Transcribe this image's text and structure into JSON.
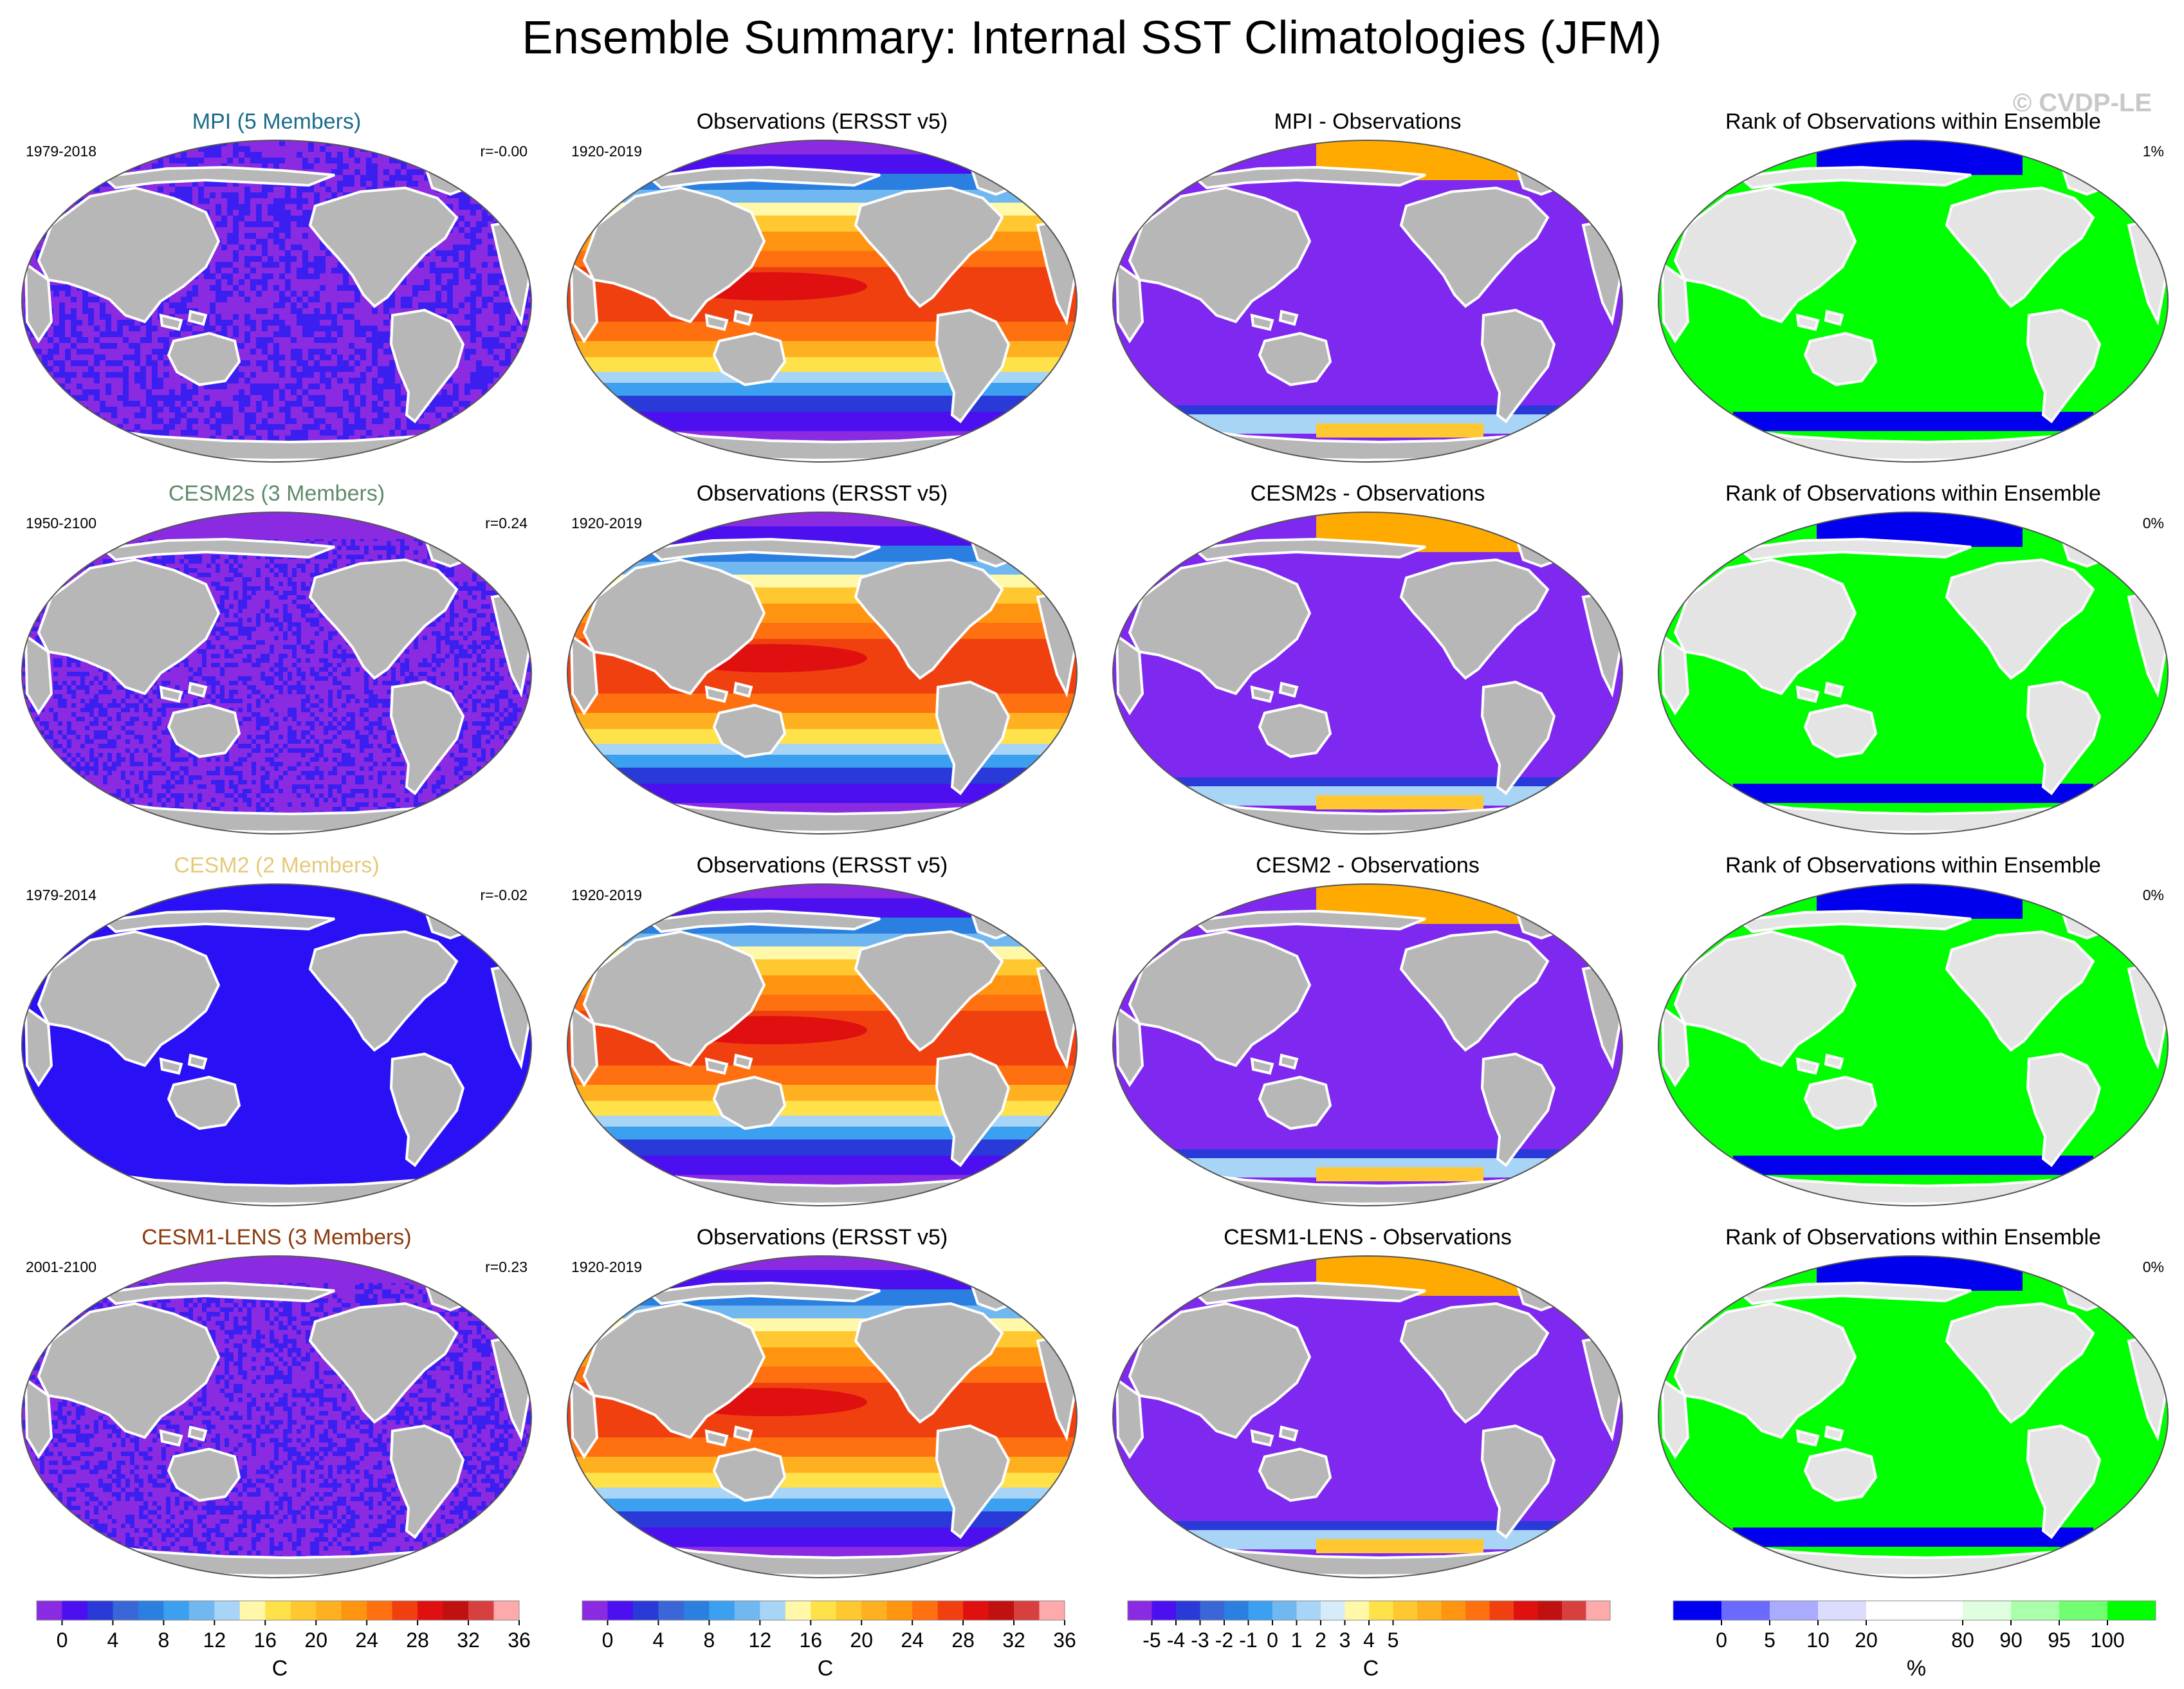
{
  "title": "Ensemble Summary: Internal SST Climatologies (JFM)",
  "watermark": "© CVDP-LE",
  "colors": {
    "land": "#b7b7b7",
    "land_rank": "#e4e4e4",
    "ocean_model_uniform": "#2a10f5",
    "ocean_noise_a": "#8a2be2",
    "ocean_noise_b": "#3a1ff0",
    "rank_green": "#00ff00",
    "rank_blue": "#0000ee",
    "diff_purple": "#7f28f0",
    "diff_orange": "#ffaa00"
  },
  "rows": [
    {
      "model": {
        "title": "MPI (5 Members)",
        "title_color": "#1a6b8a",
        "period": "1979-2018",
        "r": "r=-0.00",
        "style": "noise_dense"
      },
      "obs": {
        "title": "Observations (ERSST v5)",
        "period": "1920-2019"
      },
      "diff": {
        "title": "MPI - Observations"
      },
      "rank": {
        "title": "Rank of Observations within Ensemble",
        "percent": "1%"
      }
    },
    {
      "model": {
        "title": "CESM2s (3 Members)",
        "title_color": "#5f8a6a",
        "period": "1950-2100",
        "r": "r=0.24",
        "style": "noise_fine"
      },
      "obs": {
        "title": "Observations (ERSST v5)",
        "period": "1920-2019"
      },
      "diff": {
        "title": "CESM2s - Observations"
      },
      "rank": {
        "title": "Rank of Observations within Ensemble",
        "percent": "0%"
      }
    },
    {
      "model": {
        "title": "CESM2 (2 Members)",
        "title_color": "#e6c97a",
        "period": "1979-2014",
        "r": "r=-0.02",
        "style": "uniform"
      },
      "obs": {
        "title": "Observations (ERSST v5)",
        "period": "1920-2019"
      },
      "diff": {
        "title": "CESM2 - Observations"
      },
      "rank": {
        "title": "Rank of Observations within Ensemble",
        "percent": "0%"
      }
    },
    {
      "model": {
        "title": "CESM1-LENS (3 Members)",
        "title_color": "#8b3a0e",
        "period": "2001-2100",
        "r": "r=0.23",
        "style": "noise_fine"
      },
      "obs": {
        "title": "Observations (ERSST v5)",
        "period": "1920-2019"
      },
      "diff": {
        "title": "CESM1-LENS - Observations"
      },
      "rank": {
        "title": "Rank of Observations within Ensemble",
        "percent": "0%"
      }
    }
  ],
  "colorbars": [
    {
      "unit": "C",
      "colors": [
        "#8a2be2",
        "#4b0ff0",
        "#2a3ad8",
        "#3a66d8",
        "#2a7fe0",
        "#3ca0f0",
        "#72b8f0",
        "#a8d4f5",
        "#fff8a8",
        "#ffe14a",
        "#ffc830",
        "#ffb020",
        "#ff9410",
        "#ff7010",
        "#f04010",
        "#e01010",
        "#c01010",
        "#d84040",
        "#ffaaaa"
      ],
      "ticks": [
        "0",
        "4",
        "8",
        "12",
        "16",
        "20",
        "24",
        "28",
        "32",
        "36"
      ],
      "tick_positions": [
        1,
        3,
        5,
        7,
        9,
        11,
        13,
        15,
        17,
        19
      ]
    },
    {
      "unit": "C",
      "colors": [
        "#8a2be2",
        "#4b0ff0",
        "#2a3ad8",
        "#3a66d8",
        "#2a7fe0",
        "#3ca0f0",
        "#72b8f0",
        "#a8d4f5",
        "#fff8a8",
        "#ffe14a",
        "#ffc830",
        "#ffb020",
        "#ff9410",
        "#ff7010",
        "#f04010",
        "#e01010",
        "#c01010",
        "#d84040",
        "#ffaaaa"
      ],
      "ticks": [
        "0",
        "4",
        "8",
        "12",
        "16",
        "20",
        "24",
        "28",
        "32",
        "36"
      ],
      "tick_positions": [
        1,
        3,
        5,
        7,
        9,
        11,
        13,
        15,
        17,
        19
      ]
    },
    {
      "unit": "C",
      "colors": [
        "#8a2be2",
        "#4b0ff0",
        "#2a3ad8",
        "#3a66d8",
        "#2a7fe0",
        "#3ca0f0",
        "#72b8f0",
        "#a8d4f5",
        "#d6ecfa",
        "#fff8a8",
        "#ffe14a",
        "#ffc830",
        "#ffb020",
        "#ff9410",
        "#ff7010",
        "#f04010",
        "#e01010",
        "#c01010",
        "#d84040",
        "#ffaaaa"
      ],
      "ticks": [
        "-5",
        "-4",
        "-3",
        "-2",
        "-1",
        "0",
        "1",
        "2",
        "3",
        "4",
        "5"
      ],
      "tick_positions": [
        1,
        2,
        3,
        4,
        5,
        6,
        7,
        8,
        9,
        10,
        11
      ]
    },
    {
      "unit": "%",
      "colors": [
        "#0000f0",
        "#6a6aff",
        "#aaaaff",
        "#dcdcff",
        "#ffffff",
        "#ffffff",
        "#e0ffe0",
        "#aaffaa",
        "#70ff70",
        "#00ff00"
      ],
      "ticks": [
        "0",
        "5",
        "10",
        "20",
        "80",
        "90",
        "95",
        "100"
      ],
      "tick_positions": [
        1,
        2,
        3,
        4,
        6,
        7,
        8,
        9
      ]
    }
  ]
}
